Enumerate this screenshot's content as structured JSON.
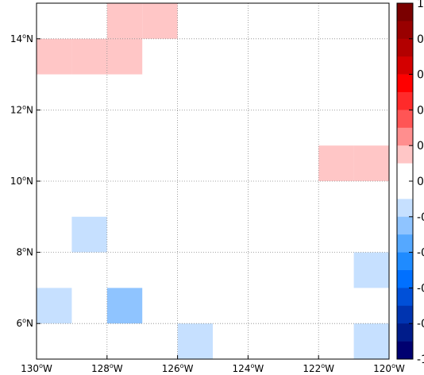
{
  "map": {
    "x_ticks": [
      {
        "value": -130,
        "label": "130°W"
      },
      {
        "value": -128,
        "label": "128°W"
      },
      {
        "value": -126,
        "label": "126°W"
      },
      {
        "value": -124,
        "label": "124°W"
      },
      {
        "value": -122,
        "label": "122°W"
      },
      {
        "value": -120,
        "label": "120°W"
      }
    ],
    "y_ticks": [
      {
        "value": 6,
        "label": "6°N"
      },
      {
        "value": 8,
        "label": "8°N"
      },
      {
        "value": 10,
        "label": "10°N"
      },
      {
        "value": 12,
        "label": "12°N"
      },
      {
        "value": 14,
        "label": "14°N"
      }
    ],
    "lon_range": [
      -130,
      -120
    ],
    "lat_range": [
      5,
      15
    ],
    "grid": true
  },
  "chart_data": {
    "type": "heatmap",
    "cell_size_deg": 1,
    "cells": [
      {
        "lon": -129,
        "lat": 14,
        "color": "#ffc6c6"
      },
      {
        "lon": -128,
        "lat": 15,
        "color": "#ffc6c6"
      },
      {
        "lon": -127,
        "lat": 15,
        "color": "#ffc6c6"
      },
      {
        "lon": -130,
        "lat": 14,
        "color": "#ffc6c6"
      },
      {
        "lon": -128,
        "lat": 14,
        "color": "#ffc6c6"
      },
      {
        "lon": -122,
        "lat": 11,
        "color": "#ffc6c6"
      },
      {
        "lon": -121,
        "lat": 11,
        "color": "#ffc6c6"
      },
      {
        "lon": -129,
        "lat": 9,
        "color": "#c6e0ff"
      },
      {
        "lon": -121,
        "lat": 8,
        "color": "#c6e0ff"
      },
      {
        "lon": -130,
        "lat": 7,
        "color": "#c6e0ff"
      },
      {
        "lon": -128,
        "lat": 7,
        "color": "#8fc4ff"
      },
      {
        "lon": -126,
        "lat": 6,
        "color": "#c6e0ff"
      },
      {
        "lon": -121,
        "lat": 6,
        "color": "#c6e0ff"
      }
    ],
    "colorbar": {
      "colors": [
        "#7a0000",
        "#990000",
        "#b30000",
        "#d40000",
        "#ff0000",
        "#ff2a2a",
        "#ff5555",
        "#ff8e8e",
        "#ffc6c6",
        "#ffffff",
        "#ffffff",
        "#c6e0ff",
        "#8fc4ff",
        "#55a8ff",
        "#1f8bff",
        "#0070ff",
        "#0050d8",
        "#0034b0",
        "#001c8a",
        "#000070"
      ],
      "labels": [
        "1",
        "0",
        "0",
        "0",
        "0",
        "0",
        "-0",
        "-0",
        "-0",
        "-0",
        "-1"
      ]
    }
  }
}
